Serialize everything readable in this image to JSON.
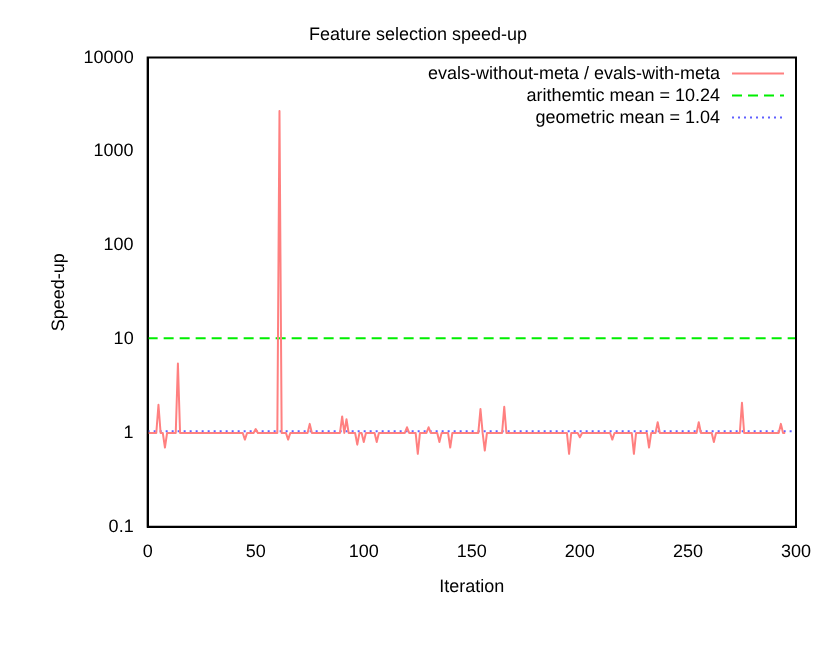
{
  "chart_data": {
    "type": "line",
    "title": "Feature selection speed-up",
    "xlabel": "Iteration",
    "ylabel": "Speed-up",
    "series": [
      {
        "name": "evals-without-meta / evals-with-meta",
        "color": "#ff8080",
        "x": [
          0,
          4,
          5,
          6,
          7,
          8,
          9,
          13,
          14,
          15,
          44,
          45,
          46,
          49,
          50,
          51,
          60,
          61,
          62,
          64,
          65,
          66,
          74,
          75,
          76,
          89,
          90,
          91,
          92,
          93,
          96,
          97,
          98,
          99,
          100,
          101,
          105,
          106,
          107,
          119,
          120,
          121,
          124,
          125,
          126,
          129,
          130,
          131,
          134,
          135,
          136,
          139,
          140,
          141,
          153,
          154,
          155,
          156,
          157,
          164,
          165,
          166,
          194,
          195,
          196,
          199,
          200,
          201,
          214,
          215,
          216,
          224,
          225,
          226,
          231,
          232,
          233,
          235,
          236,
          237,
          254,
          255,
          256,
          261,
          262,
          263,
          274,
          275,
          276,
          292,
          293,
          294,
          295
        ],
        "values": [
          1,
          1,
          2,
          1,
          1,
          0.7,
          1,
          1,
          5.5,
          1,
          1,
          0.85,
          1,
          1,
          1.1,
          1,
          1,
          2700,
          1,
          1,
          0.85,
          1,
          1,
          1.25,
          1,
          1,
          1.5,
          1,
          1.4,
          1,
          1,
          0.75,
          1,
          1,
          0.8,
          1,
          1,
          0.8,
          1,
          1,
          1.15,
          1,
          1,
          0.6,
          1,
          1,
          1.15,
          1,
          1,
          0.8,
          1,
          1,
          0.7,
          1,
          1,
          1.8,
          1,
          0.65,
          1,
          1,
          1.9,
          1,
          1,
          0.6,
          1,
          1,
          0.9,
          1,
          1,
          0.85,
          1,
          1,
          0.6,
          1,
          1,
          0.7,
          1,
          1,
          1.3,
          1,
          1,
          1.3,
          1,
          1,
          0.8,
          1,
          1,
          2.1,
          1,
          1,
          1.25,
          1,
          1
        ]
      }
    ],
    "ref_lines": [
      {
        "axis": "y",
        "value": 10.24,
        "label": "arithemtic mean = 10.24",
        "color": "#00ee00",
        "line_style": "dashed"
      },
      {
        "axis": "y",
        "value": 1.04,
        "label": "geometric mean = 1.04",
        "color": "#6060ff",
        "line_style": "dotted"
      }
    ],
    "log": "y",
    "xlim": [
      0,
      300
    ],
    "xticks": [
      0,
      50,
      100,
      150,
      200,
      250,
      300
    ],
    "ylim": [
      0.1,
      10000
    ],
    "yticks": [
      0.1,
      1,
      10,
      100,
      1000,
      10000
    ],
    "grid": false,
    "legend": "top right",
    "marker": "none",
    "line_style": "solid"
  }
}
